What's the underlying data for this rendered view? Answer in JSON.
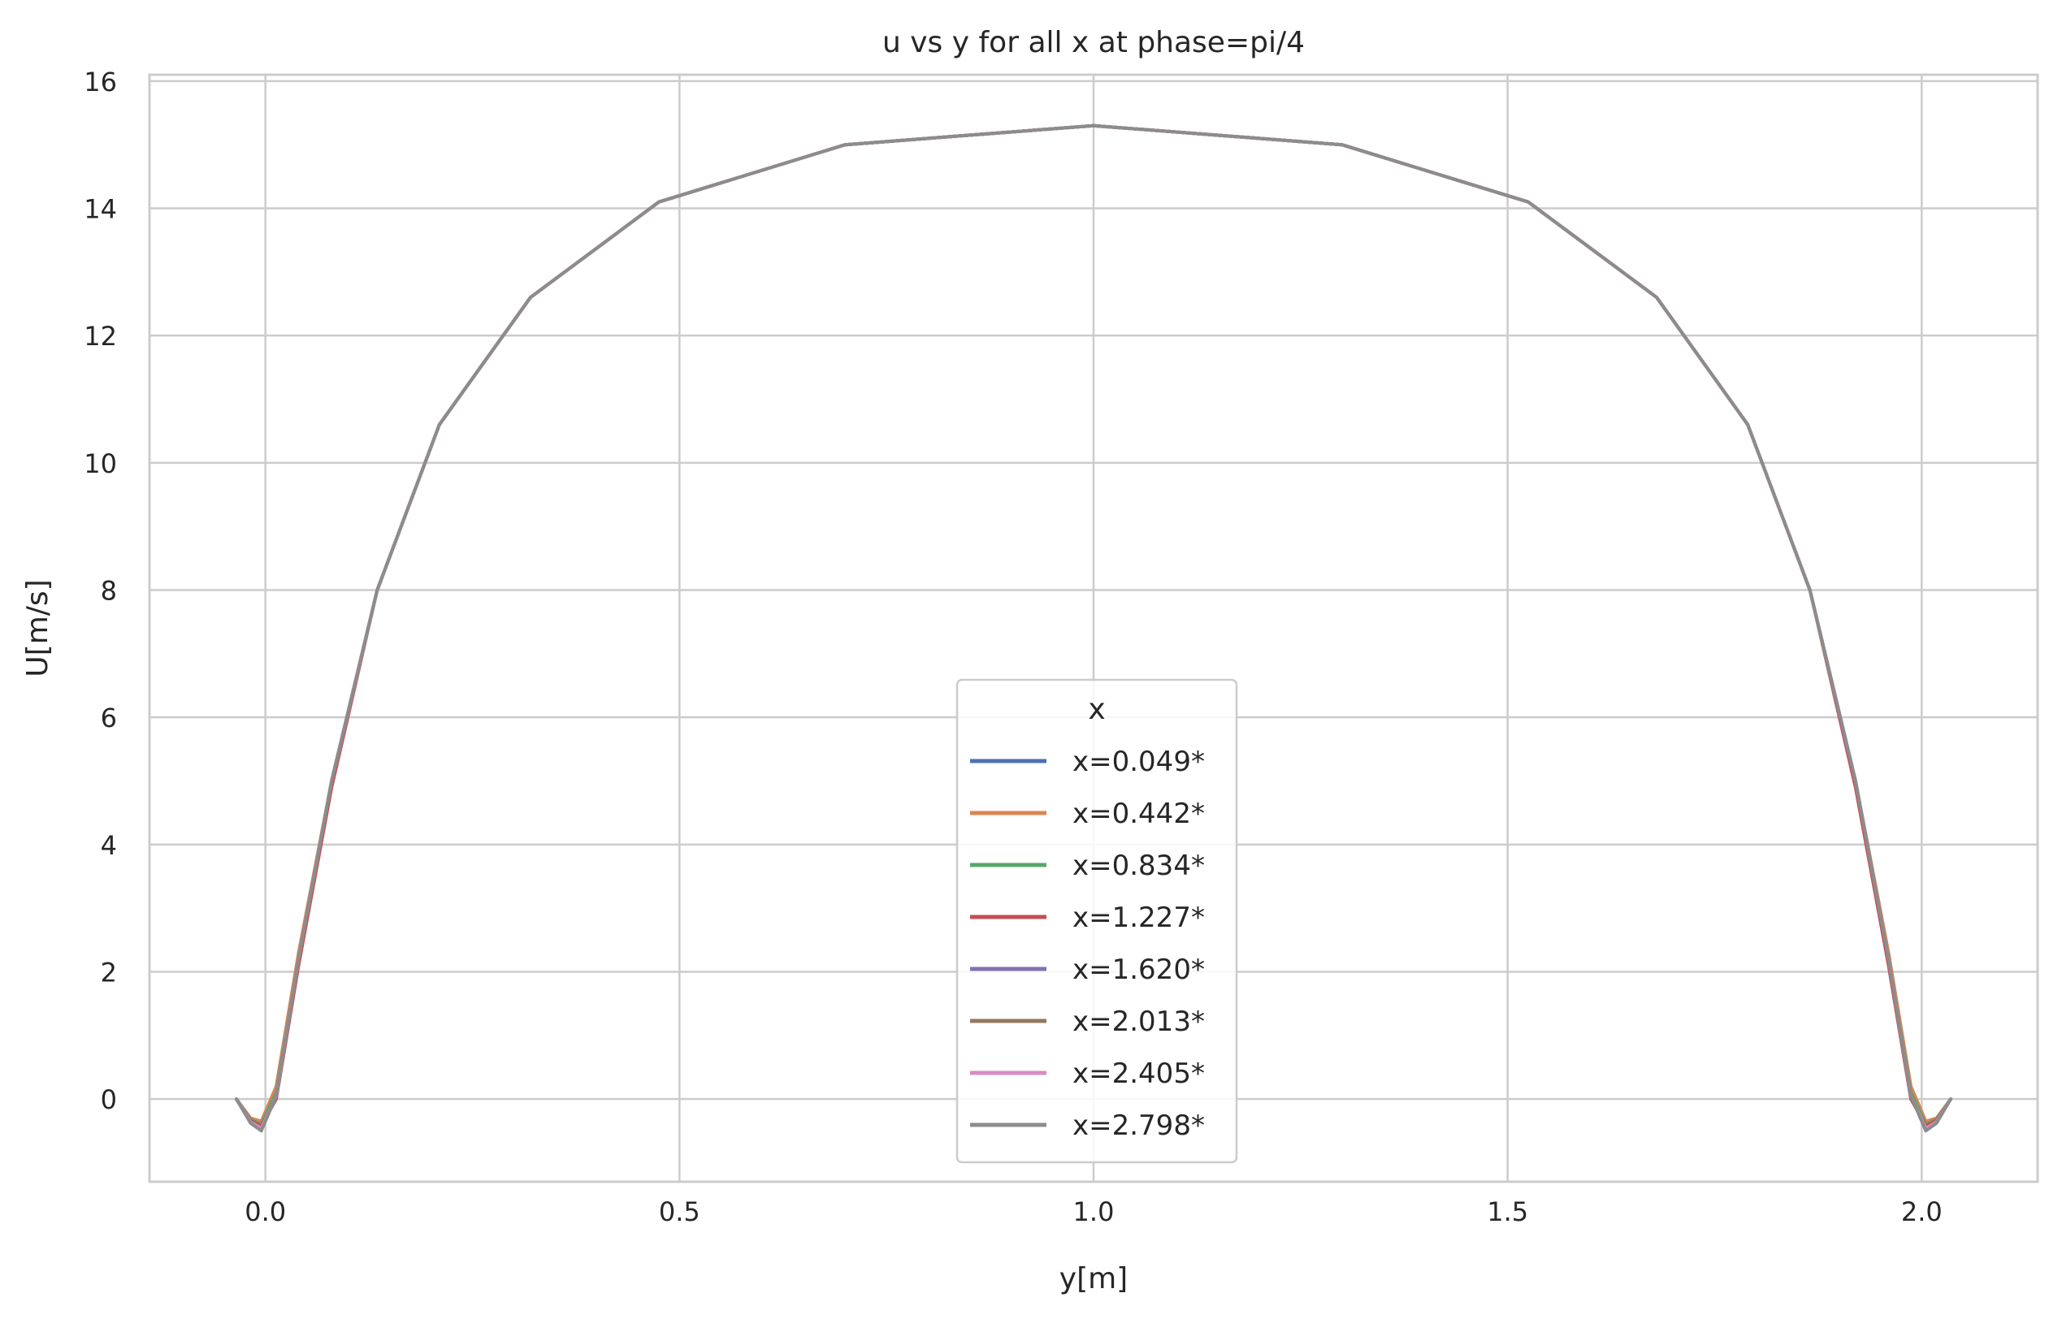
{
  "chart_data": {
    "type": "line",
    "title": "u vs y for all x at phase=pi/4",
    "xlabel": "y[m]",
    "ylabel": "U[m/s]",
    "xlim": [
      -0.14,
      2.14
    ],
    "ylim": [
      -1.3,
      16.1
    ],
    "xticks": [
      0.0,
      0.5,
      1.0,
      1.5,
      2.0
    ],
    "xtick_labels": [
      "0.0",
      "0.5",
      "1.0",
      "1.5",
      "2.0"
    ],
    "yticks": [
      0,
      2,
      4,
      6,
      8,
      10,
      12,
      14,
      16
    ],
    "ytick_labels": [
      "0",
      "2",
      "4",
      "6",
      "8",
      "10",
      "12",
      "14",
      "16"
    ],
    "grid": true,
    "legend": {
      "title": "x",
      "placement": "lower center"
    },
    "series": [
      {
        "name": "x=0.049*",
        "color": "#4c72b0",
        "x": [
          -0.035,
          -0.018,
          -0.005,
          0.013,
          0.04,
          0.08,
          0.135,
          0.21,
          0.32,
          0.475,
          0.7,
          1.0,
          1.3,
          1.525,
          1.68,
          1.79,
          1.865,
          1.92,
          1.96,
          1.987,
          2.005,
          2.018,
          2.035
        ],
        "y": [
          0.0,
          -0.35,
          -0.45,
          0.05,
          2.2,
          5.0,
          8.0,
          10.6,
          12.6,
          14.1,
          15.0,
          15.3,
          15.0,
          14.1,
          12.6,
          10.6,
          8.0,
          5.0,
          2.2,
          0.05,
          -0.45,
          -0.35,
          0.0
        ]
      },
      {
        "name": "x=0.442*",
        "color": "#dd8452",
        "x": [
          -0.035,
          -0.018,
          -0.005,
          0.013,
          0.04,
          0.08,
          0.135,
          0.21,
          0.32,
          0.475,
          0.7,
          1.0,
          1.3,
          1.525,
          1.68,
          1.79,
          1.865,
          1.92,
          1.96,
          1.987,
          2.005,
          2.018,
          2.035
        ],
        "y": [
          0.0,
          -0.3,
          -0.35,
          0.2,
          2.3,
          5.0,
          8.0,
          10.6,
          12.6,
          14.1,
          15.0,
          15.3,
          15.0,
          14.1,
          12.6,
          10.6,
          8.0,
          5.0,
          2.3,
          0.2,
          -0.35,
          -0.3,
          0.0
        ]
      },
      {
        "name": "x=0.834*",
        "color": "#55a868",
        "x": [
          -0.035,
          -0.018,
          -0.005,
          0.013,
          0.04,
          0.08,
          0.135,
          0.21,
          0.32,
          0.475,
          0.7,
          1.0,
          1.3,
          1.525,
          1.68,
          1.79,
          1.865,
          1.92,
          1.96,
          1.987,
          2.005,
          2.018,
          2.035
        ],
        "y": [
          0.0,
          -0.32,
          -0.4,
          0.1,
          2.2,
          5.0,
          8.0,
          10.6,
          12.6,
          14.1,
          15.0,
          15.3,
          15.0,
          14.1,
          12.6,
          10.6,
          8.0,
          5.0,
          2.2,
          0.1,
          -0.4,
          -0.32,
          0.0
        ]
      },
      {
        "name": "x=1.227*",
        "color": "#c44e52",
        "x": [
          -0.035,
          -0.018,
          -0.005,
          0.013,
          0.04,
          0.08,
          0.135,
          0.21,
          0.32,
          0.475,
          0.7,
          1.0,
          1.3,
          1.525,
          1.68,
          1.79,
          1.865,
          1.92,
          1.96,
          1.987,
          2.005,
          2.018,
          2.035
        ],
        "y": [
          0.0,
          -0.34,
          -0.42,
          0.0,
          2.1,
          4.9,
          8.0,
          10.6,
          12.6,
          14.1,
          15.0,
          15.3,
          15.0,
          14.1,
          12.6,
          10.6,
          8.0,
          4.9,
          2.1,
          0.0,
          -0.42,
          -0.34,
          0.0
        ]
      },
      {
        "name": "x=1.620*",
        "color": "#8172b3",
        "x": [
          -0.035,
          -0.018,
          -0.005,
          0.013,
          0.04,
          0.08,
          0.135,
          0.21,
          0.32,
          0.475,
          0.7,
          1.0,
          1.3,
          1.525,
          1.68,
          1.79,
          1.865,
          1.92,
          1.96,
          1.987,
          2.005,
          2.018,
          2.035
        ],
        "y": [
          0.0,
          -0.36,
          -0.46,
          0.05,
          2.2,
          5.0,
          8.0,
          10.6,
          12.6,
          14.1,
          15.0,
          15.3,
          15.0,
          14.1,
          12.6,
          10.6,
          8.0,
          5.0,
          2.2,
          0.05,
          -0.46,
          -0.36,
          0.0
        ]
      },
      {
        "name": "x=2.013*",
        "color": "#937860",
        "x": [
          -0.035,
          -0.018,
          -0.005,
          0.013,
          0.04,
          0.08,
          0.135,
          0.21,
          0.32,
          0.475,
          0.7,
          1.0,
          1.3,
          1.525,
          1.68,
          1.79,
          1.865,
          1.92,
          1.96,
          1.987,
          2.005,
          2.018,
          2.035
        ],
        "y": [
          0.0,
          -0.36,
          -0.46,
          0.05,
          2.2,
          5.0,
          8.0,
          10.6,
          12.6,
          14.1,
          15.0,
          15.3,
          15.0,
          14.1,
          12.6,
          10.6,
          8.0,
          5.0,
          2.2,
          0.05,
          -0.46,
          -0.36,
          0.0
        ]
      },
      {
        "name": "x=2.405*",
        "color": "#da8bc3",
        "x": [
          -0.035,
          -0.018,
          -0.005,
          0.013,
          0.04,
          0.08,
          0.135,
          0.21,
          0.32,
          0.475,
          0.7,
          1.0,
          1.3,
          1.525,
          1.68,
          1.79,
          1.865,
          1.92,
          1.96,
          1.987,
          2.005,
          2.018,
          2.035
        ],
        "y": [
          0.0,
          -0.36,
          -0.46,
          0.05,
          2.2,
          5.0,
          8.0,
          10.6,
          12.6,
          14.1,
          15.0,
          15.3,
          15.0,
          14.1,
          12.6,
          10.6,
          8.0,
          5.0,
          2.2,
          0.05,
          -0.46,
          -0.36,
          0.0
        ]
      },
      {
        "name": "x=2.798*",
        "color": "#8c8c8c",
        "x": [
          -0.035,
          -0.018,
          -0.005,
          0.013,
          0.04,
          0.08,
          0.135,
          0.21,
          0.32,
          0.475,
          0.7,
          1.0,
          1.3,
          1.525,
          1.68,
          1.79,
          1.865,
          1.92,
          1.96,
          1.987,
          2.005,
          2.018,
          2.035
        ],
        "y": [
          0.0,
          -0.38,
          -0.5,
          0.05,
          2.2,
          5.0,
          8.0,
          10.6,
          12.6,
          14.1,
          15.0,
          15.3,
          15.0,
          14.1,
          12.6,
          10.6,
          8.0,
          5.0,
          2.2,
          0.05,
          -0.5,
          -0.38,
          0.0
        ]
      }
    ]
  }
}
